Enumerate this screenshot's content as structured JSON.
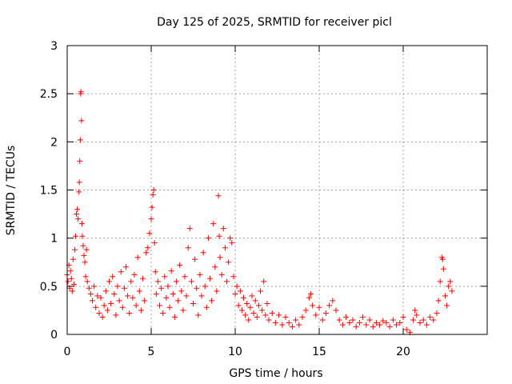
{
  "chart_data": {
    "type": "scatter",
    "title": "Day 125 of 2025, SRMTID for receiver picl",
    "xlabel": "GPS time / hours",
    "ylabel": "SRMTID / TECUs",
    "xlim": [
      0,
      25
    ],
    "ylim": [
      0,
      3
    ],
    "xticks": [
      0,
      5,
      10,
      15,
      20
    ],
    "xtick_labels": [
      "0",
      "5",
      "10",
      "15",
      "20"
    ],
    "yticks": [
      0,
      0.5,
      1,
      1.5,
      2,
      2.5,
      3
    ],
    "ytick_labels": [
      "0",
      "0.5",
      "1",
      "1.5",
      "2",
      "2.5",
      "3"
    ],
    "grid": true,
    "marker": "+",
    "color": "#ff0000",
    "series": [
      {
        "name": "SRMTID",
        "points": [
          [
            0.0,
            0.62
          ],
          [
            0.05,
            0.55
          ],
          [
            0.1,
            0.72
          ],
          [
            0.15,
            0.48
          ],
          [
            0.2,
            0.66
          ],
          [
            0.25,
            0.58
          ],
          [
            0.3,
            0.45
          ],
          [
            0.35,
            0.78
          ],
          [
            0.4,
            0.52
          ],
          [
            0.45,
            0.88
          ],
          [
            0.5,
            1.02
          ],
          [
            0.55,
            1.25
          ],
          [
            0.6,
            1.3
          ],
          [
            0.65,
            1.2
          ],
          [
            0.7,
            1.48
          ],
          [
            0.72,
            1.58
          ],
          [
            0.75,
            1.8
          ],
          [
            0.78,
            2.02
          ],
          [
            0.8,
            2.5
          ],
          [
            0.82,
            2.52
          ],
          [
            0.85,
            2.22
          ],
          [
            0.88,
            1.15
          ],
          [
            0.9,
            1.02
          ],
          [
            0.95,
            0.92
          ],
          [
            1.0,
            0.82
          ],
          [
            1.05,
            0.75
          ],
          [
            1.1,
            0.6
          ],
          [
            1.15,
            0.88
          ],
          [
            1.2,
            0.55
          ],
          [
            1.3,
            0.48
          ],
          [
            1.4,
            0.42
          ],
          [
            1.5,
            0.35
          ],
          [
            1.6,
            0.5
          ],
          [
            1.7,
            0.28
          ],
          [
            1.8,
            0.4
          ],
          [
            1.9,
            0.22
          ],
          [
            2.0,
            0.38
          ],
          [
            2.1,
            0.18
          ],
          [
            2.2,
            0.3
          ],
          [
            2.3,
            0.45
          ],
          [
            2.4,
            0.25
          ],
          [
            2.5,
            0.55
          ],
          [
            2.6,
            0.32
          ],
          [
            2.7,
            0.6
          ],
          [
            2.8,
            0.42
          ],
          [
            2.9,
            0.2
          ],
          [
            3.0,
            0.5
          ],
          [
            3.1,
            0.35
          ],
          [
            3.2,
            0.65
          ],
          [
            3.3,
            0.28
          ],
          [
            3.4,
            0.48
          ],
          [
            3.5,
            0.7
          ],
          [
            3.6,
            0.4
          ],
          [
            3.7,
            0.22
          ],
          [
            3.8,
            0.55
          ],
          [
            3.9,
            0.38
          ],
          [
            4.0,
            0.62
          ],
          [
            4.1,
            0.3
          ],
          [
            4.2,
            0.8
          ],
          [
            4.3,
            0.45
          ],
          [
            4.4,
            0.25
          ],
          [
            4.5,
            0.58
          ],
          [
            4.6,
            0.35
          ],
          [
            4.7,
            0.85
          ],
          [
            4.8,
            0.9
          ],
          [
            4.9,
            1.05
          ],
          [
            5.0,
            1.2
          ],
          [
            5.05,
            1.32
          ],
          [
            5.1,
            1.45
          ],
          [
            5.15,
            1.5
          ],
          [
            5.2,
            0.95
          ],
          [
            5.25,
            0.65
          ],
          [
            5.3,
            0.42
          ],
          [
            5.4,
            0.55
          ],
          [
            5.5,
            0.3
          ],
          [
            5.6,
            0.48
          ],
          [
            5.7,
            0.22
          ],
          [
            5.8,
            0.6
          ],
          [
            5.9,
            0.38
          ],
          [
            6.0,
            0.5
          ],
          [
            6.1,
            0.28
          ],
          [
            6.2,
            0.66
          ],
          [
            6.3,
            0.42
          ],
          [
            6.4,
            0.18
          ],
          [
            6.5,
            0.55
          ],
          [
            6.6,
            0.35
          ],
          [
            6.7,
            0.72
          ],
          [
            6.8,
            0.45
          ],
          [
            6.9,
            0.25
          ],
          [
            7.0,
            0.6
          ],
          [
            7.1,
            0.4
          ],
          [
            7.2,
            0.9
          ],
          [
            7.3,
            1.1
          ],
          [
            7.4,
            0.55
          ],
          [
            7.5,
            0.32
          ],
          [
            7.6,
            0.78
          ],
          [
            7.7,
            0.48
          ],
          [
            7.8,
            0.2
          ],
          [
            7.9,
            0.62
          ],
          [
            8.0,
            0.4
          ],
          [
            8.1,
            0.85
          ],
          [
            8.2,
            0.5
          ],
          [
            8.3,
            0.28
          ],
          [
            8.4,
            1.0
          ],
          [
            8.5,
            0.58
          ],
          [
            8.6,
            0.35
          ],
          [
            8.7,
            1.15
          ],
          [
            8.8,
            0.7
          ],
          [
            8.9,
            0.45
          ],
          [
            9.0,
            1.44
          ],
          [
            9.05,
            1.02
          ],
          [
            9.1,
            0.8
          ],
          [
            9.2,
            0.62
          ],
          [
            9.3,
            1.1
          ],
          [
            9.4,
            0.9
          ],
          [
            9.5,
            0.55
          ],
          [
            9.6,
            0.75
          ],
          [
            9.7,
            1.0
          ],
          [
            9.8,
            0.95
          ],
          [
            9.9,
            0.6
          ],
          [
            10.0,
            0.42
          ],
          [
            10.1,
            0.5
          ],
          [
            10.2,
            0.3
          ],
          [
            10.3,
            0.45
          ],
          [
            10.4,
            0.25
          ],
          [
            10.5,
            0.38
          ],
          [
            10.6,
            0.2
          ],
          [
            10.7,
            0.32
          ],
          [
            10.8,
            0.15
          ],
          [
            10.9,
            0.28
          ],
          [
            11.0,
            0.4
          ],
          [
            11.1,
            0.22
          ],
          [
            11.2,
            0.35
          ],
          [
            11.3,
            0.18
          ],
          [
            11.4,
            0.3
          ],
          [
            11.5,
            0.45
          ],
          [
            11.6,
            0.25
          ],
          [
            11.7,
            0.55
          ],
          [
            11.8,
            0.2
          ],
          [
            11.9,
            0.32
          ],
          [
            12.0,
            0.15
          ],
          [
            12.2,
            0.22
          ],
          [
            12.4,
            0.12
          ],
          [
            12.6,
            0.2
          ],
          [
            12.8,
            0.1
          ],
          [
            13.0,
            0.18
          ],
          [
            13.2,
            0.12
          ],
          [
            13.4,
            0.08
          ],
          [
            13.6,
            0.15
          ],
          [
            13.8,
            0.1
          ],
          [
            14.0,
            0.18
          ],
          [
            14.2,
            0.25
          ],
          [
            14.4,
            0.38
          ],
          [
            14.5,
            0.42
          ],
          [
            14.6,
            0.3
          ],
          [
            14.8,
            0.2
          ],
          [
            15.0,
            0.28
          ],
          [
            15.2,
            0.15
          ],
          [
            15.4,
            0.22
          ],
          [
            15.6,
            0.3
          ],
          [
            15.8,
            0.35
          ],
          [
            16.0,
            0.25
          ],
          [
            16.2,
            0.15
          ],
          [
            16.4,
            0.1
          ],
          [
            16.6,
            0.18
          ],
          [
            16.8,
            0.12
          ],
          [
            17.0,
            0.15
          ],
          [
            17.2,
            0.08
          ],
          [
            17.4,
            0.12
          ],
          [
            17.6,
            0.18
          ],
          [
            17.8,
            0.1
          ],
          [
            18.0,
            0.15
          ],
          [
            18.2,
            0.08
          ],
          [
            18.4,
            0.12
          ],
          [
            18.6,
            0.1
          ],
          [
            18.8,
            0.14
          ],
          [
            19.0,
            0.12
          ],
          [
            19.2,
            0.08
          ],
          [
            19.4,
            0.15
          ],
          [
            19.6,
            0.1
          ],
          [
            19.8,
            0.12
          ],
          [
            20.0,
            0.18
          ],
          [
            20.2,
            0.05
          ],
          [
            20.4,
            0.02
          ],
          [
            20.6,
            0.15
          ],
          [
            20.7,
            0.25
          ],
          [
            20.8,
            0.2
          ],
          [
            21.0,
            0.12
          ],
          [
            21.2,
            0.15
          ],
          [
            21.4,
            0.1
          ],
          [
            21.6,
            0.18
          ],
          [
            21.8,
            0.15
          ],
          [
            22.0,
            0.22
          ],
          [
            22.1,
            0.35
          ],
          [
            22.2,
            0.55
          ],
          [
            22.3,
            0.8
          ],
          [
            22.35,
            0.78
          ],
          [
            22.4,
            0.68
          ],
          [
            22.5,
            0.4
          ],
          [
            22.6,
            0.3
          ],
          [
            22.7,
            0.5
          ],
          [
            22.8,
            0.55
          ],
          [
            22.9,
            0.45
          ]
        ]
      }
    ]
  }
}
